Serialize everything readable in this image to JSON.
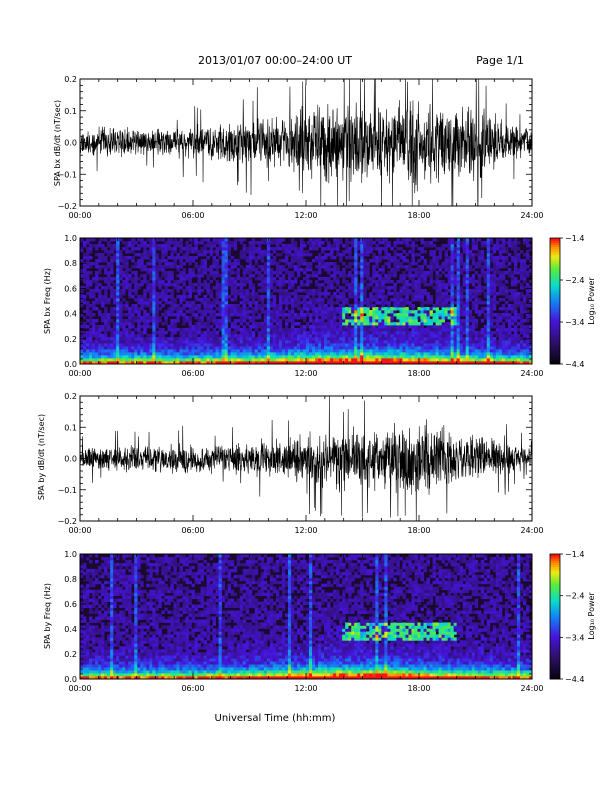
{
  "header": {
    "title": "2013/01/07  00:00–24:00 UT",
    "page": "Page 1/1"
  },
  "x_axis_label": "Universal Time (hh:mm)",
  "chart_data": [
    {
      "type": "line",
      "title": "",
      "ylabel": "SPA bx dB/dt (nT/sec)",
      "xlim": [
        "00:00",
        "24:00"
      ],
      "x_ticks": [
        "00:00",
        "06:00",
        "12:00",
        "18:00",
        "24:00"
      ],
      "ylim": [
        -0.2,
        0.2
      ],
      "y_ticks": [
        -0.2,
        -0.1,
        0.0,
        0.1,
        0.2
      ],
      "y_tick_labels": [
        "−0.2",
        "−0.1",
        "0.0",
        "0.1",
        "0.2"
      ],
      "series": [
        {
          "envelope_hours": [
            0,
            2,
            4,
            5,
            6,
            8,
            10,
            11,
            12,
            13,
            14,
            15,
            16,
            17,
            18,
            19,
            20,
            21,
            22,
            23,
            24
          ],
          "envelope_amplitude": [
            0.05,
            0.055,
            0.05,
            0.05,
            0.06,
            0.08,
            0.09,
            0.1,
            0.13,
            0.14,
            0.15,
            0.14,
            0.13,
            0.15,
            0.17,
            0.14,
            0.13,
            0.14,
            0.1,
            0.06,
            0.05
          ],
          "color": "#000000"
        }
      ]
    },
    {
      "type": "heatmap",
      "title": "",
      "ylabel": "SPA bx Freq (Hz)",
      "xlim": [
        "00:00",
        "24:00"
      ],
      "x_ticks": [
        "00:00",
        "06:00",
        "12:00",
        "18:00",
        "24:00"
      ],
      "ylim": [
        0.0,
        1.0
      ],
      "y_ticks": [
        0.0,
        0.2,
        0.4,
        0.6,
        0.8,
        1.0
      ],
      "y_tick_labels": [
        "0.0",
        "0.2",
        "0.4",
        "0.6",
        "0.8",
        "1.0"
      ],
      "colorbar": {
        "label": "Log₁₀ Power",
        "range": [
          -4.4,
          -1.4
        ],
        "ticks": [
          "−1.4",
          "−2.4",
          "−3.4",
          "−4.4"
        ]
      },
      "pc_band": {
        "freq_low": 0.3,
        "freq_high": 0.45,
        "start_hour": 14,
        "end_hour": 20
      }
    },
    {
      "type": "line",
      "title": "",
      "ylabel": "SPA by dB/dt (nT/sec)",
      "xlim": [
        "00:00",
        "24:00"
      ],
      "x_ticks": [
        "00:00",
        "06:00",
        "12:00",
        "18:00",
        "24:00"
      ],
      "ylim": [
        -0.2,
        0.2
      ],
      "y_ticks": [
        -0.2,
        -0.1,
        0.0,
        0.1,
        0.2
      ],
      "y_tick_labels": [
        "−0.2",
        "−0.1",
        "0.0",
        "0.1",
        "0.2"
      ],
      "series": [
        {
          "envelope_hours": [
            0,
            2,
            4,
            5,
            6,
            8,
            10,
            11,
            12,
            13,
            14,
            15,
            16,
            17,
            18,
            19,
            20,
            21,
            22,
            23,
            24
          ],
          "envelope_amplitude": [
            0.04,
            0.045,
            0.05,
            0.06,
            0.05,
            0.06,
            0.07,
            0.08,
            0.09,
            0.1,
            0.12,
            0.1,
            0.11,
            0.13,
            0.17,
            0.12,
            0.1,
            0.09,
            0.07,
            0.05,
            0.04
          ],
          "color": "#000000"
        }
      ]
    },
    {
      "type": "heatmap",
      "title": "",
      "ylabel": "SPA by Freq (Hz)",
      "xlim": [
        "00:00",
        "24:00"
      ],
      "x_ticks": [
        "00:00",
        "06:00",
        "12:00",
        "18:00",
        "24:00"
      ],
      "ylim": [
        0.0,
        1.0
      ],
      "y_ticks": [
        0.0,
        0.2,
        0.4,
        0.6,
        0.8,
        1.0
      ],
      "y_tick_labels": [
        "0.0",
        "0.2",
        "0.4",
        "0.6",
        "0.8",
        "1.0"
      ],
      "colorbar": {
        "label": "Log₁₀ Power",
        "range": [
          -4.4,
          -1.4
        ],
        "ticks": [
          "−1.4",
          "−2.4",
          "−3.4",
          "−4.4"
        ]
      },
      "pc_band": {
        "freq_low": 0.3,
        "freq_high": 0.45,
        "start_hour": 14,
        "end_hour": 20
      }
    }
  ]
}
